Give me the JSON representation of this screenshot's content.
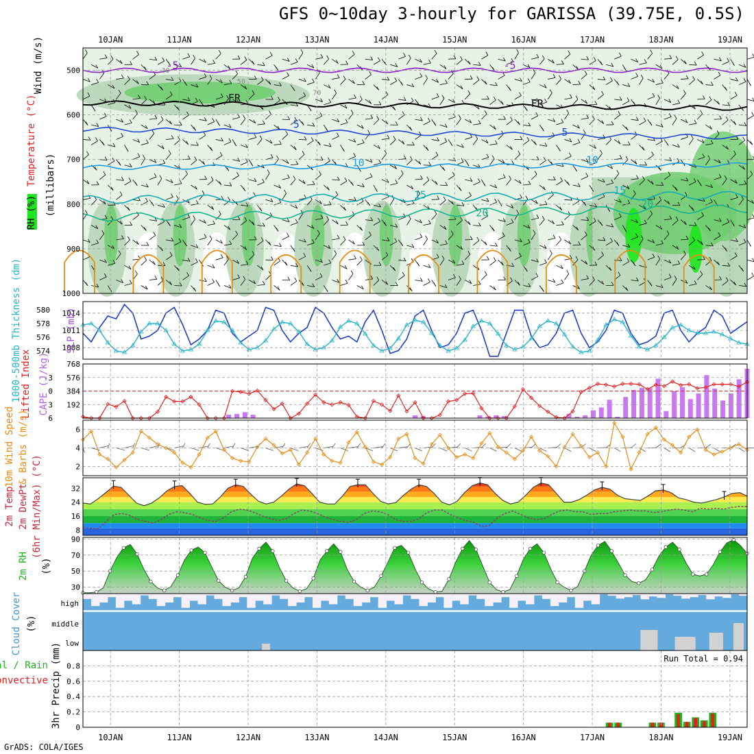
{
  "header": {
    "title": "GFS 0~10day 3-hourly for GARISSA (39.75E, 0.5S)",
    "footer": "GrADS: COLA/IGES"
  },
  "colors": {
    "grid": "#9a9a9a",
    "rh_light": "#e6f3e6",
    "rh_mid": "#b8d6b8",
    "rh_dark": "#6fcd6f",
    "rh_vivid": "#1ee61e",
    "temp_purple": "#8c1ec8",
    "temp_blue": "#1e46d2",
    "temp_lightblue": "#1e9be6",
    "temp_cyan": "#14aab4",
    "temp_teal": "#14b48c",
    "temp_orange": "#e68c14",
    "freeze": "#000000",
    "slp": "#1e3cc8",
    "thickness": "#28b4c8",
    "lifted_index": "#e61e1e",
    "cape": "#c878f0",
    "wind_speed": "#e68c14",
    "cloud": "#64aadc",
    "cloud_gap": "#f5f0fa",
    "cloud_grey": "#d2d2d2",
    "precip_total": "#1eb41e",
    "precip_conv": "#e61e1e"
  },
  "chart_data": {
    "type": "meteogram",
    "time": {
      "day_labels": [
        "10JAN",
        "11JAN",
        "12JAN",
        "13JAN",
        "14JAN",
        "15JAN",
        "16JAN",
        "17JAN",
        "18JAN",
        "19JAN"
      ],
      "start_day": 9.6,
      "end_day": 19.25,
      "step_hours": 3
    },
    "panels": [
      {
        "id": "upper_air",
        "ylabel": [
          "Wind (m/s)",
          "Temperature (°C)",
          "RH (%)",
          "(millibars)"
        ],
        "ylim": [
          1000,
          450
        ],
        "yticks": [
          500,
          600,
          700,
          800,
          900,
          1000
        ],
        "isotherms": [
          {
            "label": "-5",
            "p_start": 500,
            "p_end": 500
          },
          {
            "label": "FR",
            "p_start": 573,
            "p_end": 585
          },
          {
            "label": "5",
            "p_start": 632,
            "p_end": 650
          },
          {
            "label": "10",
            "p_start": 718,
            "p_end": 712
          },
          {
            "label": "15",
            "p_start": 790,
            "p_end": 780
          },
          {
            "label": "20",
            "p_start": 830,
            "p_end": 810
          }
        ],
        "rh_contour_labels": [
          "30",
          "50",
          "70"
        ]
      },
      {
        "id": "slp_thickness",
        "ylabel": [
          "SLP (mb)",
          "1000-500mb Thickness (dm)"
        ],
        "slp_ticks": [
          1008,
          1011,
          1014
        ],
        "thickness_ticks": [
          574,
          576,
          578,
          580
        ],
        "slp_range": [
          1006,
          1016
        ],
        "slp_values": [
          1010.5,
          1009.0,
          1011.5,
          1013.5,
          1013.0,
          1015.5,
          1014.0,
          1009.5,
          1010.0,
          1011.0,
          1014.0,
          1015.0,
          1012.0,
          1008.5,
          1009.5,
          1011.0,
          1014.5,
          1014.0,
          1010.5,
          1009.0,
          1010.0,
          1011.0,
          1015.0,
          1014.5,
          1011.0,
          1009.0,
          1010.5,
          1011.5,
          1015.0,
          1014.0,
          1011.5,
          1009.5,
          1010.0,
          1009.0,
          1012.5,
          1014.5,
          1011.0,
          1007.0,
          1007.5,
          1009.5,
          1013.5,
          1014.5,
          1011.0,
          1008.0,
          1008.5,
          1010.5,
          1014.0,
          1014.5,
          1011.0,
          1006.5,
          1006.5,
          1010.5,
          1014.5,
          1014.5,
          1010.0,
          1008.0,
          1008.5,
          1010.5,
          1014.0,
          1014.5,
          1010.5,
          1008.0,
          1009.0,
          1011.0,
          1014.5,
          1014.0,
          1010.5,
          1008.5,
          1009.0,
          1010.0,
          1014.0,
          1014.5,
          1011.0,
          1009.0,
          1010.5,
          1011.5,
          1014.5,
          1013.5,
          1010.5,
          1011.5,
          1012.5
        ],
        "thickness_values": [
          577.8,
          578.0,
          577.0,
          575.2,
          574.0,
          573.8,
          574.8,
          576.8,
          578.0,
          578.0,
          577.0,
          575.0,
          574.0,
          574.2,
          575.0,
          577.0,
          578.4,
          578.2,
          577.0,
          575.2,
          574.2,
          574.5,
          575.5,
          577.2,
          578.2,
          578.0,
          576.8,
          575.0,
          574.2,
          574.5,
          575.5,
          577.5,
          578.4,
          578.0,
          576.5,
          574.8,
          574.0,
          574.4,
          575.8,
          577.8,
          578.5,
          578.2,
          576.6,
          574.8,
          574.0,
          574.4,
          575.6,
          577.6,
          578.4,
          578.0,
          576.5,
          574.8,
          574.2,
          574.6,
          575.8,
          577.6,
          578.4,
          578.0,
          576.4,
          574.6,
          573.8,
          574.0,
          575.6,
          577.8,
          578.6,
          578.2,
          576.2,
          574.6,
          574.2,
          574.8,
          576.0,
          577.4,
          577.8,
          577.0,
          576.6,
          576.6,
          576.8,
          576.4,
          575.8,
          575.2,
          575.0
        ]
      },
      {
        "id": "li_cape",
        "ylabel": [
          "Lifted Index",
          "CAPE (J/kg)"
        ],
        "li_ticks": [
          -3,
          0,
          3,
          6
        ],
        "li_range": [
          6,
          -6
        ],
        "cape_ticks": [
          192,
          384,
          576,
          768
        ],
        "li_values": [
          5.7,
          6.0,
          6.3,
          2.9,
          3.5,
          2.2,
          6.5,
          6.0,
          6.8,
          4.6,
          1.3,
          2.3,
          2.3,
          1.3,
          3.0,
          6.5,
          6.5,
          6.5,
          0.0,
          0.2,
          0.6,
          -0.1,
          2.0,
          4.0,
          2.8,
          6.0,
          5.0,
          2.8,
          0.8,
          2.5,
          3.0,
          2.5,
          3.1,
          5.7,
          6.6,
          2.2,
          3.0,
          4.4,
          1.0,
          4.5,
          2.5,
          6.5,
          6.2,
          5.3,
          2.3,
          2.0,
          0.6,
          0.5,
          3.8,
          6.0,
          6.5,
          6.5,
          3.4,
          -0.4,
          1.5,
          3.3,
          4.6,
          5.8,
          6.8,
          4.5,
          0.2,
          -0.7,
          -1.6,
          -1.4,
          -1.0,
          -1.6,
          -1.6,
          -1.5,
          -0.4,
          -1.4,
          -1.1,
          -2.1,
          -1.3,
          -1.5,
          -0.6,
          -0.8,
          -1.5,
          -1.5,
          -1.5,
          -1.0,
          -2.0
        ],
        "cape_values": [
          0,
          0,
          0,
          0,
          0,
          0,
          0,
          0,
          0,
          0,
          0,
          0,
          0,
          0,
          0,
          0,
          0,
          0,
          48,
          60,
          84,
          48,
          0,
          0,
          0,
          0,
          0,
          0,
          0,
          0,
          0,
          0,
          0,
          0,
          0,
          0,
          0,
          0,
          0,
          0,
          0,
          40,
          30,
          0,
          0,
          0,
          0,
          0,
          0,
          40,
          25,
          40,
          30,
          0,
          0,
          0,
          0,
          0,
          0,
          0,
          60,
          20,
          40,
          110,
          152,
          260,
          20,
          300,
          400,
          430,
          425,
          560,
          100,
          380,
          440,
          270,
          350,
          610,
          420,
          250,
          350,
          550,
          700
        ]
      },
      {
        "id": "wind10m",
        "ylabel": [
          "10m Wind Speed",
          "& Barbs (m/s)"
        ],
        "ylim": [
          1,
          7
        ],
        "yticks": [
          2,
          4,
          6
        ],
        "values": [
          4.9,
          5.8,
          3.3,
          2.8,
          1.9,
          2.7,
          3.5,
          5.8,
          5.1,
          4.4,
          4.0,
          3.5,
          2.4,
          1.9,
          3.3,
          5.1,
          5.8,
          3.8,
          2.9,
          2.6,
          2.5,
          4.1,
          5.0,
          4.3,
          3.4,
          3.8,
          2.2,
          3.5,
          5.0,
          3.3,
          2.6,
          2.4,
          4.6,
          5.7,
          4.1,
          2.5,
          2.2,
          3.0,
          5.0,
          5.5,
          2.9,
          2.3,
          4.4,
          5.4,
          4.0,
          3.0,
          3.3,
          2.9,
          4.5,
          5.6,
          4.1,
          3.5,
          2.8,
          3.7,
          5.2,
          3.7,
          3.1,
          2.0,
          4.1,
          5.5,
          4.2,
          3.0,
          3.5,
          2.0,
          6.7,
          5.2,
          1.7,
          3.5,
          5.5,
          6.2,
          4.9,
          4.3,
          3.5,
          5.2,
          6.0,
          3.8,
          3.3,
          3.6,
          4.0,
          4.4,
          3.8
        ]
      },
      {
        "id": "temp2m",
        "ylabel": [
          "2m Temp",
          "2m DewPt",
          "(6hr Min/Max) (°C)"
        ],
        "yticks": [
          8,
          16,
          24,
          32
        ],
        "ylim": [
          5,
          38
        ],
        "temp_values": [
          23.5,
          23.0,
          26.0,
          29.5,
          33.2,
          32.5,
          28.0,
          23.5,
          22.0,
          23.5,
          26.5,
          30.5,
          33.0,
          33.5,
          29.0,
          24.0,
          22.8,
          23.0,
          27.0,
          32.0,
          34.0,
          33.0,
          28.5,
          24.5,
          23.0,
          24.0,
          27.5,
          31.5,
          34.5,
          33.5,
          29.0,
          24.0,
          23.0,
          23.0,
          27.5,
          33.0,
          34.0,
          34.0,
          29.0,
          24.5,
          23.0,
          23.8,
          28.0,
          31.5,
          34.0,
          33.0,
          29.0,
          24.0,
          22.5,
          24.5,
          29.5,
          33.5,
          35.0,
          34.0,
          29.0,
          25.0,
          23.0,
          24.0,
          28.0,
          32.5,
          35.0,
          34.0,
          29.0,
          24.0,
          24.0,
          25.5,
          28.0,
          31.0,
          32.5,
          31.5,
          28.0,
          26.0,
          25.5,
          25.0,
          27.5,
          30.5,
          31.0,
          29.5,
          26.5,
          25.5,
          24.0,
          23.5,
          24.5,
          25.5,
          27.0,
          29.0,
          29.5,
          27.5
        ],
        "dewpt_values": [
          9.5,
          9.0,
          8.8,
          13.0,
          17.0,
          17.5,
          16.5,
          14.0,
          13.0,
          12.0,
          14.0,
          17.0,
          18.5,
          18.0,
          17.0,
          15.0,
          13.5,
          13.0,
          15.0,
          18.5,
          20.0,
          19.5,
          18.0,
          16.0,
          14.5,
          13.5,
          14.5,
          17.5,
          19.5,
          19.0,
          17.5,
          15.5,
          14.0,
          13.0,
          12.5,
          14.0,
          17.5,
          19.0,
          18.5,
          17.0,
          14.0,
          13.0,
          13.0,
          14.5,
          18.0,
          19.5,
          19.5,
          17.0,
          15.0,
          13.5,
          12.5,
          10.0,
          10.5,
          15.0,
          17.5,
          19.0,
          17.0,
          15.0,
          14.0,
          14.5,
          17.0,
          19.0,
          19.5,
          18.5,
          18.5,
          17.0,
          17.5,
          17.5,
          18.5,
          19.0,
          19.5,
          19.0,
          19.0,
          18.0,
          18.5,
          19.5,
          20.0,
          19.5,
          18.5,
          20.5,
          20.0,
          20.5,
          20.0,
          21.0,
          21.5,
          21.5
        ],
        "bands": [
          {
            "from": 5,
            "to": 9,
            "color": "#2864dc"
          },
          {
            "from": 9,
            "to": 12,
            "color": "#1e8cf0"
          },
          {
            "from": 12,
            "to": 16,
            "color": "#1eb43c"
          },
          {
            "from": 16,
            "to": 20,
            "color": "#50d250"
          },
          {
            "from": 20,
            "to": 24,
            "color": "#aaf050"
          },
          {
            "from": 24,
            "to": 27,
            "color": "#ffeb50"
          },
          {
            "from": 27,
            "to": 30,
            "color": "#ffaa1e"
          },
          {
            "from": 30,
            "to": 33,
            "color": "#ff7814"
          },
          {
            "from": 33,
            "to": 38,
            "color": "#e63c14"
          }
        ]
      },
      {
        "id": "rh2m",
        "ylabel": [
          "2m RH",
          "(%)"
        ],
        "yticks": [
          30,
          50,
          70,
          90
        ],
        "ylim": [
          22,
          92
        ],
        "values": [
          23,
          23,
          24,
          29,
          50,
          67,
          79,
          83,
          71,
          52,
          37,
          29,
          26,
          31,
          45,
          64,
          76,
          80,
          73,
          55,
          38,
          30,
          26,
          29,
          43,
          66,
          78,
          86,
          75,
          54,
          38,
          29,
          25,
          28,
          41,
          64,
          75,
          84,
          74,
          52,
          37,
          30,
          26,
          30,
          44,
          61,
          79,
          82,
          73,
          53,
          36,
          28,
          24,
          25,
          40,
          61,
          78,
          88,
          77,
          56,
          36,
          27,
          24,
          27,
          44,
          65,
          78,
          84,
          73,
          53,
          36,
          30,
          26,
          31,
          50,
          70,
          82,
          87,
          75,
          60,
          45,
          37,
          35,
          39,
          52,
          69,
          80,
          86,
          77,
          60,
          46,
          44,
          46,
          58,
          74,
          85,
          89,
          82,
          72
        ]
      },
      {
        "id": "cloud",
        "ylabel": [
          "Cloud Cover",
          "(%)"
        ],
        "levels": [
          "high",
          "middle",
          "low"
        ]
      },
      {
        "id": "precip",
        "ylabel": [
          "Total / Rain",
          "Convective",
          "3hr Precip (mm)"
        ],
        "ylim": [
          0,
          1.0
        ],
        "yticks": [
          0,
          0.2,
          0.4,
          0.6,
          0.8
        ],
        "annotation": "Run Total = 0.94",
        "events": [
          {
            "day": 17.25,
            "total": 0.06,
            "convective": 0.06
          },
          {
            "day": 17.375,
            "total": 0.06,
            "convective": 0.06
          },
          {
            "day": 17.875,
            "total": 0.06,
            "convective": 0.06
          },
          {
            "day": 18.0,
            "total": 0.06,
            "convective": 0.06
          },
          {
            "day": 18.25,
            "total": 0.19,
            "convective": 0.17
          },
          {
            "day": 18.375,
            "total": 0.07,
            "convective": 0.07
          },
          {
            "day": 18.5,
            "total": 0.13,
            "convective": 0.12
          },
          {
            "day": 18.625,
            "total": 0.09,
            "convective": 0.08
          },
          {
            "day": 18.75,
            "total": 0.19,
            "convective": 0.18
          }
        ]
      }
    ]
  }
}
